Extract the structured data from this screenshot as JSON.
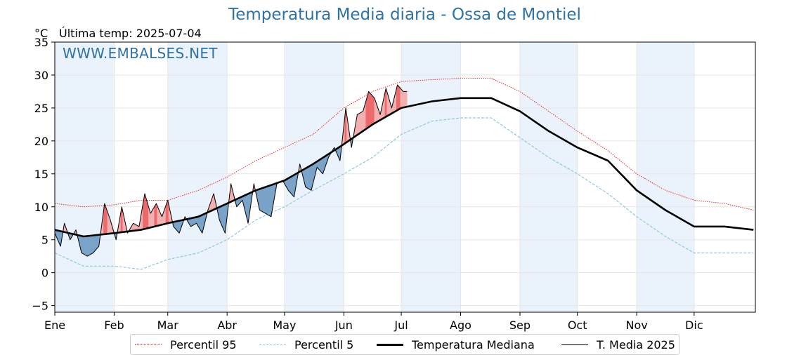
{
  "chart_data": {
    "type": "line",
    "title": "Temperatura Media diaria - Ossa de Montiel",
    "unit_label": "°C",
    "last_temp_label": "Última temp: 2025-07-04",
    "watermark": "WWW.EMBALSES.NET",
    "ylim": [
      -6,
      35
    ],
    "yticks": [
      -5,
      0,
      5,
      10,
      15,
      20,
      25,
      30,
      35
    ],
    "ytick_labels": [
      "−5",
      "0",
      "5",
      "10",
      "15",
      "20",
      "25",
      "30",
      "35"
    ],
    "xlim": [
      0,
      366
    ],
    "month_starts": [
      0,
      31,
      59,
      90,
      120,
      151,
      181,
      212,
      243,
      273,
      304,
      334
    ],
    "month_labels": [
      "Ene",
      "Feb",
      "Mar",
      "Abr",
      "May",
      "Jun",
      "Jul",
      "Ago",
      "Sep",
      "Oct",
      "Nov",
      "Dic"
    ],
    "grid": true,
    "legend_position": "bottom",
    "colors": {
      "p95": "#e8191b",
      "p5": "#90c8dd",
      "median": "#000000",
      "current": "#000000",
      "above_fill": "#f3b0b0",
      "above_strong": "#ec6a6c",
      "below_fill": "#7aa3c8",
      "band": "#eaf2fb",
      "title": "#2f72a6"
    },
    "series": [
      {
        "name": "Percentil 95",
        "key": "p95",
        "style": "dotted",
        "doy": [
          0,
          15,
          31,
          45,
          59,
          75,
          90,
          105,
          120,
          135,
          151,
          166,
          181,
          197,
          212,
          228,
          243,
          258,
          273,
          289,
          304,
          319,
          334,
          350,
          365
        ],
        "values": [
          10.5,
          10.0,
          10.3,
          11.0,
          11.0,
          12.5,
          14.5,
          17.0,
          19.0,
          21.0,
          25.0,
          27.5,
          29.0,
          29.3,
          29.5,
          29.5,
          27.5,
          24.5,
          21.5,
          18.5,
          15.0,
          12.5,
          11.0,
          10.5,
          9.5
        ]
      },
      {
        "name": "Percentil 5",
        "key": "p5",
        "style": "dashed",
        "doy": [
          0,
          15,
          31,
          45,
          59,
          75,
          90,
          105,
          120,
          135,
          151,
          166,
          181,
          197,
          212,
          228,
          243,
          258,
          273,
          289,
          304,
          319,
          334,
          350,
          365
        ],
        "values": [
          3.0,
          1.0,
          1.0,
          0.5,
          2.0,
          3.0,
          5.0,
          8.0,
          10.0,
          12.5,
          15.0,
          17.5,
          21.0,
          23.0,
          23.5,
          23.5,
          20.5,
          17.5,
          15.0,
          12.0,
          8.5,
          5.5,
          3.0,
          3.0,
          3.0
        ]
      },
      {
        "name": "Temperatura Mediana",
        "key": "median",
        "style": "solid-thick",
        "doy": [
          0,
          15,
          31,
          45,
          59,
          75,
          90,
          105,
          120,
          135,
          151,
          166,
          181,
          197,
          212,
          228,
          243,
          258,
          273,
          289,
          304,
          319,
          334,
          350,
          365
        ],
        "values": [
          6.5,
          5.5,
          6.0,
          6.5,
          7.5,
          8.5,
          10.5,
          12.5,
          14.0,
          16.5,
          19.5,
          22.5,
          25.0,
          26.0,
          26.5,
          26.5,
          24.5,
          21.5,
          19.0,
          17.0,
          12.5,
          9.5,
          7.0,
          7.0,
          6.5
        ]
      },
      {
        "name": "T. Media 2025",
        "key": "current",
        "style": "solid-thin",
        "doy": [
          0,
          3,
          5,
          8,
          11,
          14,
          17,
          20,
          23,
          26,
          29,
          32,
          35,
          38,
          41,
          44,
          47,
          50,
          53,
          56,
          59,
          62,
          65,
          68,
          71,
          74,
          77,
          80,
          83,
          86,
          89,
          92,
          95,
          98,
          101,
          104,
          107,
          110,
          113,
          116,
          119,
          122,
          125,
          128,
          131,
          134,
          137,
          140,
          143,
          146,
          149,
          152,
          155,
          158,
          161,
          164,
          167,
          170,
          173,
          176,
          179,
          182,
          184
        ],
        "values": [
          6.0,
          4.0,
          7.5,
          5.0,
          6.5,
          3.0,
          2.5,
          3.0,
          4.0,
          10.5,
          8.0,
          5.0,
          10.0,
          6.0,
          7.5,
          7.0,
          12.0,
          9.0,
          10.5,
          8.5,
          11.0,
          7.0,
          6.0,
          8.5,
          7.0,
          7.5,
          6.0,
          9.5,
          12.0,
          8.0,
          6.0,
          13.5,
          10.0,
          11.0,
          7.5,
          13.5,
          9.5,
          9.0,
          8.5,
          13.5,
          14.0,
          12.5,
          11.5,
          16.5,
          13.0,
          12.5,
          16.0,
          15.0,
          17.5,
          19.0,
          17.0,
          25.0,
          19.0,
          24.0,
          24.5,
          27.5,
          26.5,
          24.0,
          28.0,
          25.0,
          28.5,
          27.5,
          27.5
        ]
      }
    ]
  }
}
